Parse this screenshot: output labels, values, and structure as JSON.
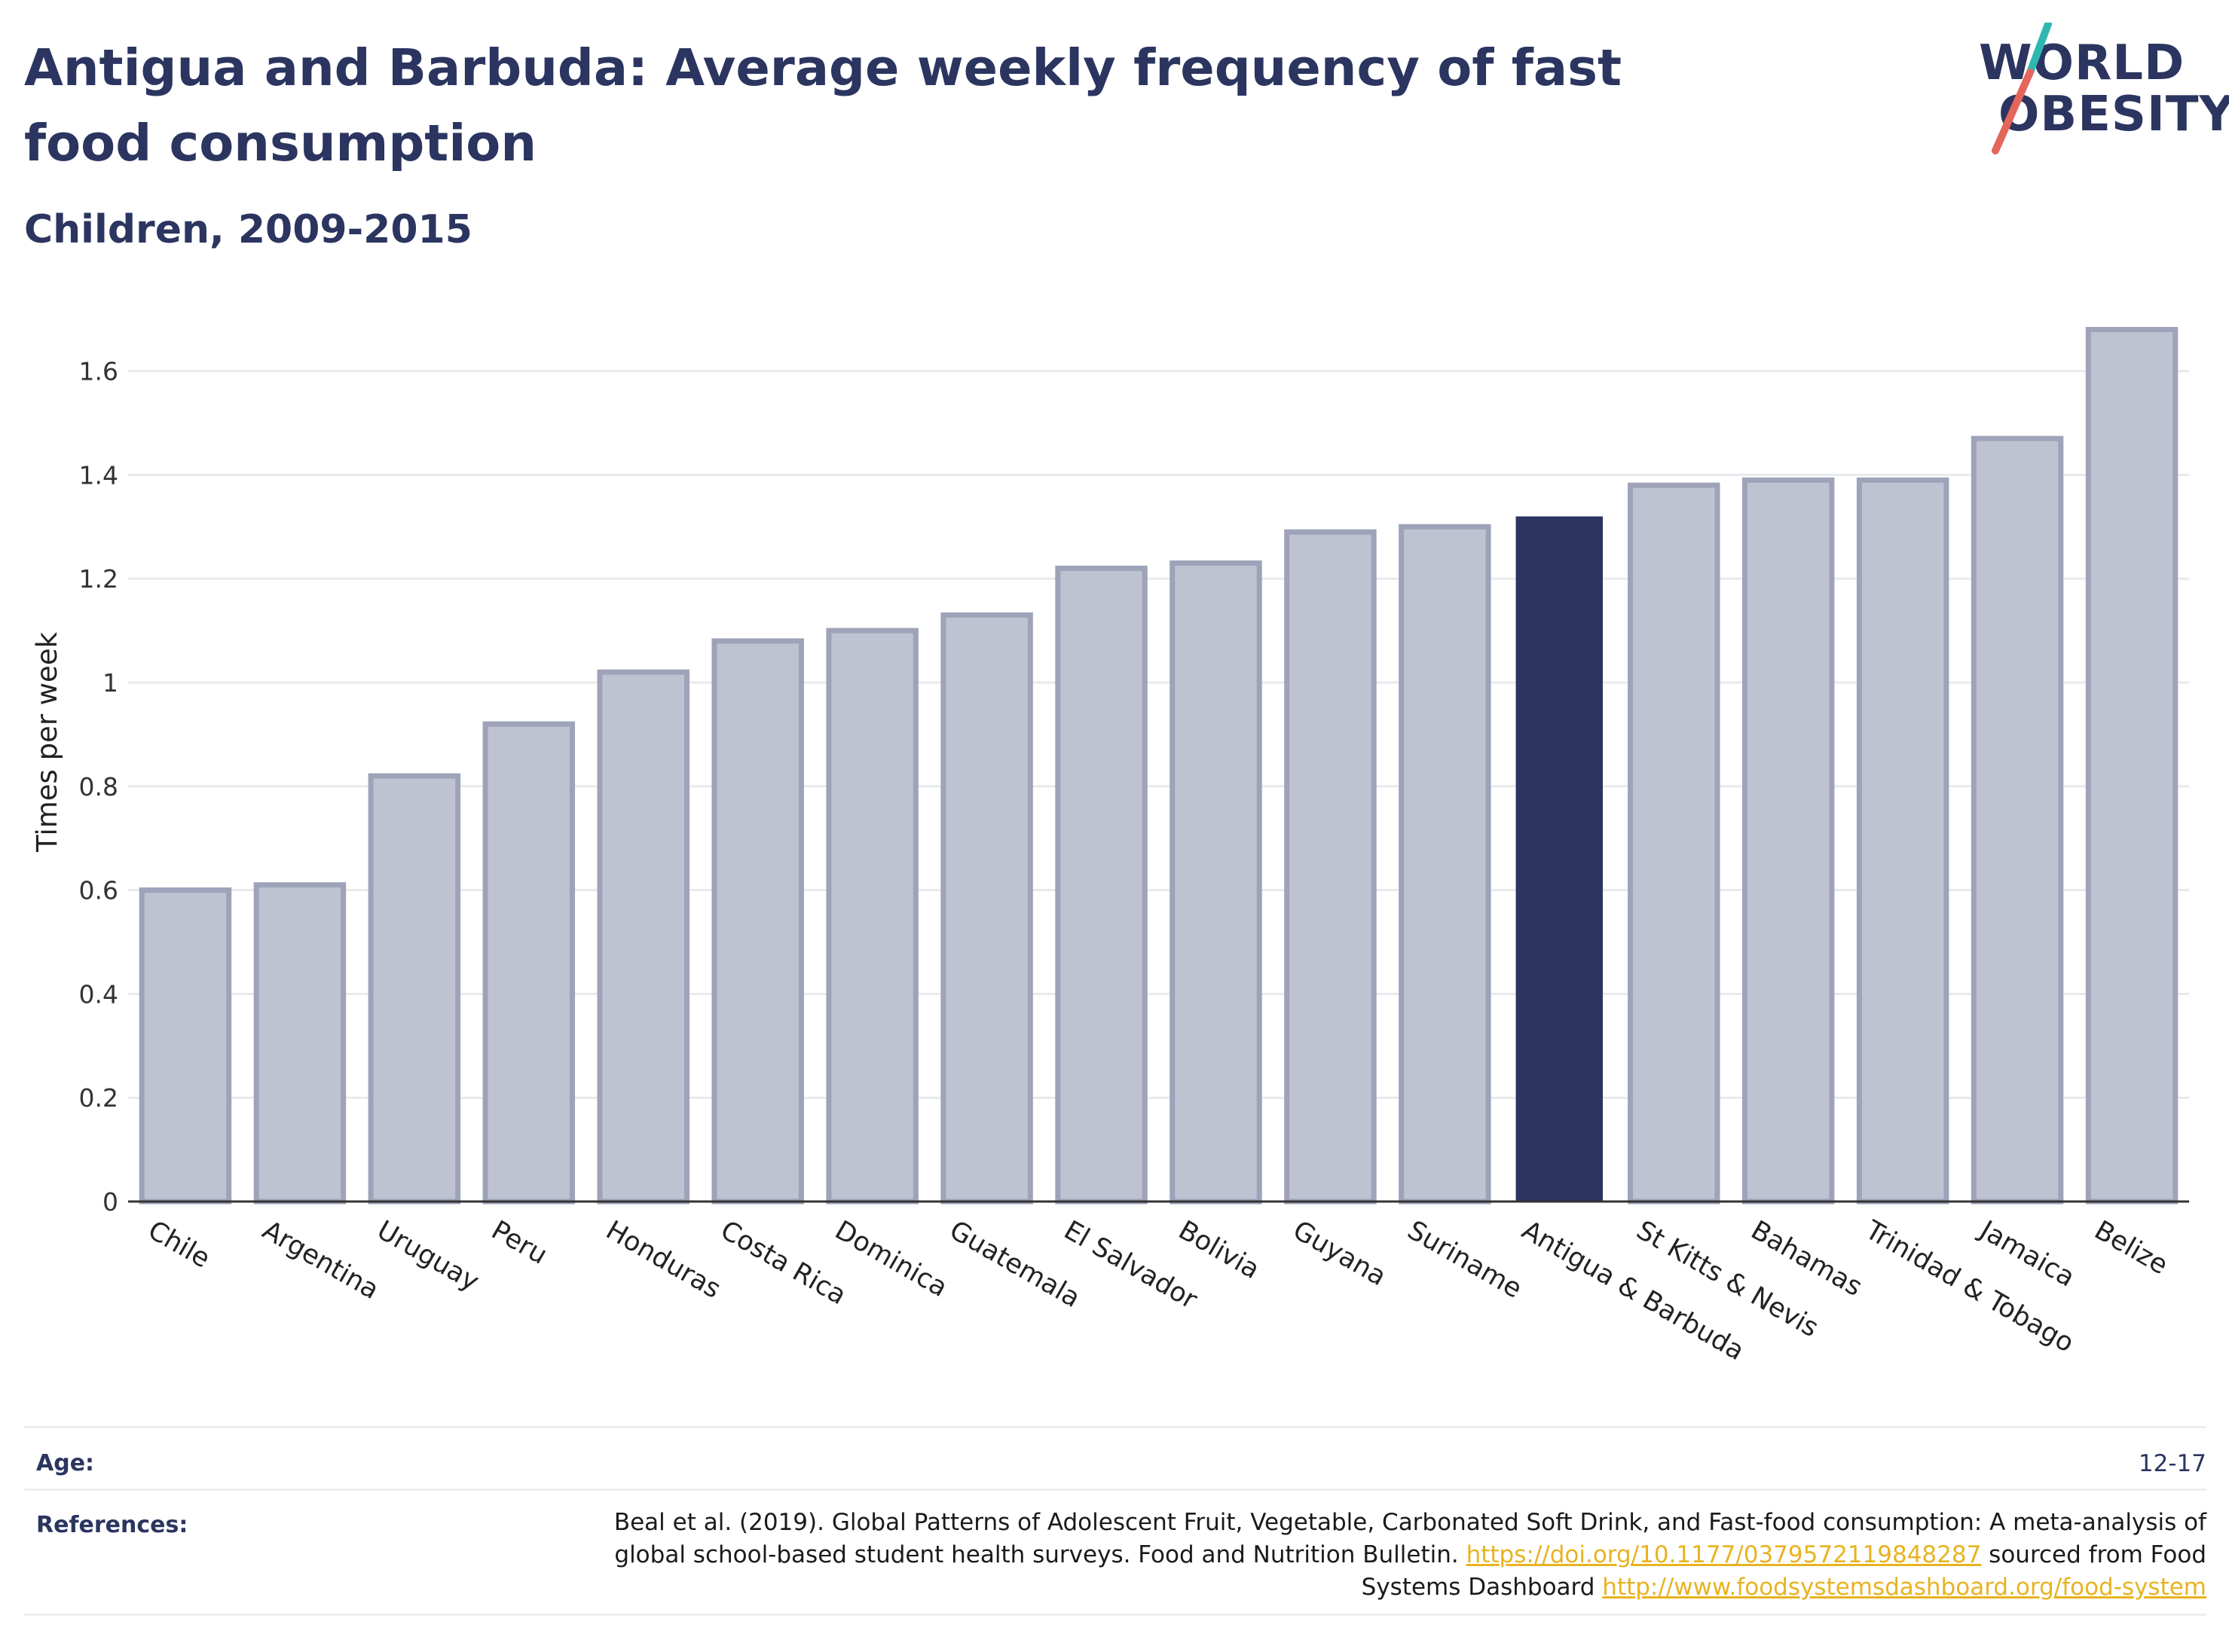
{
  "header": {
    "title": "Antigua and Barbuda: Average weekly frequency of fast food consumption",
    "subtitle": "Children, 2009-2015"
  },
  "logo": {
    "line1": "WORLD",
    "line2": "OBESITY",
    "accent_teal": "#2fb7b1",
    "accent_red": "#e4665a"
  },
  "colors": {
    "highlight": "#2b3560",
    "bar_fill": "#bfc2d0",
    "bar_stroke": "#9ea3b9",
    "grid": "#e9eaee",
    "axis": "#333333",
    "link": "#e8b321"
  },
  "chart_data": {
    "type": "bar",
    "title": "Antigua and Barbuda: Average weekly frequency of fast food consumption",
    "subtitle": "Children, 2009-2015",
    "ylabel": "Times per week",
    "xlabel": "",
    "ylim": [
      0,
      1.7
    ],
    "yticks": [
      0,
      0.2,
      0.4,
      0.6,
      0.8,
      1,
      1.2,
      1.4,
      1.6
    ],
    "ytick_labels": [
      "0",
      "0.2",
      "0.4",
      "0.6",
      "0.8",
      "1",
      "1.2",
      "1.4",
      "1.6"
    ],
    "grid": true,
    "highlight": "Antigua & Barbuda",
    "categories": [
      "Chile",
      "Argentina",
      "Uruguay",
      "Peru",
      "Honduras",
      "Costa Rica",
      "Dominica",
      "Guatemala",
      "El Salvador",
      "Bolivia",
      "Guyana",
      "Suriname",
      "Antigua & Barbuda",
      "St Kitts & Nevis",
      "Bahamas",
      "Trinidad & Tobago",
      "Jamaica",
      "Belize"
    ],
    "values": [
      0.6,
      0.61,
      0.82,
      0.92,
      1.02,
      1.08,
      1.1,
      1.13,
      1.22,
      1.23,
      1.29,
      1.3,
      1.32,
      1.38,
      1.39,
      1.39,
      1.47,
      1.68
    ]
  },
  "footer": {
    "age_label": "Age:",
    "age_value": "12-17",
    "references_label": "References:",
    "ref_text_1": "Beal et al. (2019). Global Patterns of Adolescent Fruit, Vegetable, Carbonated Soft Drink, and Fast-food consumption: A meta-analysis of global school-based student health surveys. Food and Nutrition Bulletin. ",
    "ref_link_1": "https://doi.org/10.1177/0379572119848287",
    "ref_text_2": " sourced from Food Systems Dashboard ",
    "ref_link_2": "http://www.foodsystemsdashboard.org/food-system"
  }
}
